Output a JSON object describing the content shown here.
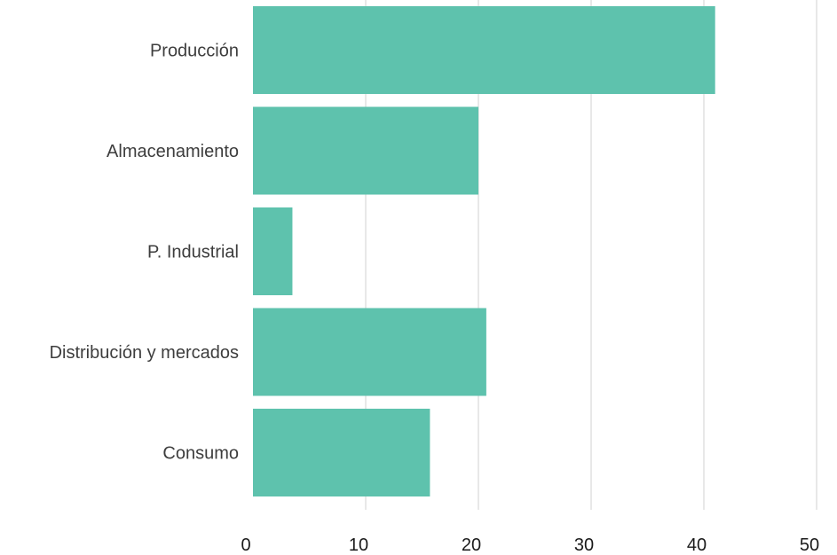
{
  "chart_data": {
    "type": "bar",
    "orientation": "horizontal",
    "categories": [
      "Producción",
      "Almacenamiento",
      "P. Industrial",
      "Distribución y mercados",
      "Consumo"
    ],
    "values": [
      41,
      20,
      3.5,
      20.7,
      15.7
    ],
    "title": "",
    "xlabel": "",
    "ylabel": "",
    "xlim": [
      0,
      50
    ],
    "xticks": [
      "0",
      "10",
      "20",
      "30",
      "40",
      "50"
    ],
    "grid": "vertical",
    "legend": "none",
    "bar_color": "#5ec2ad"
  }
}
